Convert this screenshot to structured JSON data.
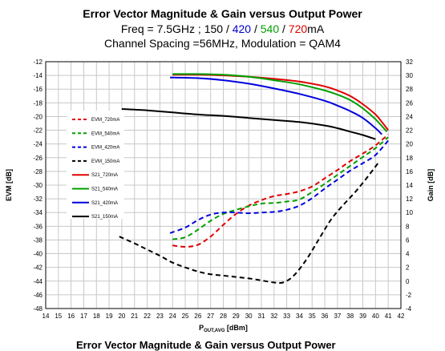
{
  "title": "Error Vector Magnitude & Gain versus Output Power",
  "subtitle": {
    "prefix": "Freq = 7.5GHz ; ",
    "parts": [
      {
        "text": "150",
        "color": "#000000"
      },
      {
        "text": " / ",
        "color": "#000000"
      },
      {
        "text": "420",
        "color": "#0000cc"
      },
      {
        "text": " / ",
        "color": "#000000"
      },
      {
        "text": "540",
        "color": "#00a000"
      },
      {
        "text": " / ",
        "color": "#000000"
      },
      {
        "text": "720",
        "color": "#e00000"
      }
    ],
    "suffix": "mA"
  },
  "subtitle2": "Channel Spacing =56MHz, Modulation = QAM4",
  "cut_caption": "Error Vector Magnitude & Gain versus Output Power",
  "chart_data": {
    "type": "line",
    "xlabel_main": "P",
    "xlabel_sub": "OUT,AVG",
    "xlabel_rest": " [dBm]",
    "ylabel": "EVM [dB]",
    "y2label": "Gain [dB]",
    "xlim": [
      14,
      42
    ],
    "ylim": [
      -48,
      -12
    ],
    "y2lim": [
      -4,
      32
    ],
    "xticks": [
      14,
      15,
      16,
      17,
      18,
      19,
      20,
      21,
      22,
      23,
      24,
      25,
      26,
      27,
      28,
      29,
      30,
      31,
      32,
      33,
      34,
      35,
      36,
      37,
      38,
      39,
      40,
      41,
      42
    ],
    "yticks": [
      -12,
      -14,
      -16,
      -18,
      -20,
      -22,
      -24,
      -26,
      -28,
      -30,
      -32,
      -34,
      -36,
      -38,
      -40,
      -42,
      -44,
      -46,
      -48
    ],
    "y2ticks": [
      32,
      30,
      28,
      26,
      24,
      22,
      20,
      18,
      16,
      14,
      12,
      10,
      8,
      6,
      4,
      2,
      0,
      -2,
      -4
    ],
    "grid": true,
    "legend_position": "upper-left",
    "series": [
      {
        "name": "EVM_720mA",
        "axis": "left",
        "color": "#e00000",
        "dash": true,
        "x": [
          24,
          25,
          26,
          27,
          28,
          29,
          30,
          31,
          32,
          33,
          34,
          35,
          36,
          37,
          38,
          39,
          40,
          41
        ],
        "y": [
          -38.8,
          -39.0,
          -38.7,
          -37.5,
          -35.8,
          -34.2,
          -33.0,
          -32.2,
          -31.6,
          -31.3,
          -30.9,
          -30.2,
          -29.0,
          -27.8,
          -26.5,
          -25.4,
          -24.2,
          -22.6
        ]
      },
      {
        "name": "EVM_540mA",
        "axis": "left",
        "color": "#00a000",
        "dash": true,
        "x": [
          24,
          25,
          26,
          27,
          28,
          29,
          30,
          31,
          32,
          33,
          34,
          35,
          36,
          37,
          38,
          39,
          40,
          41
        ],
        "y": [
          -37.9,
          -37.6,
          -36.5,
          -35.2,
          -34.2,
          -33.6,
          -33.1,
          -32.7,
          -32.6,
          -32.4,
          -32.1,
          -31.0,
          -29.8,
          -28.5,
          -27.2,
          -25.9,
          -24.6,
          -23.0
        ]
      },
      {
        "name": "EVM_420mA",
        "axis": "left",
        "color": "#0000dd",
        "dash": true,
        "x": [
          23.8,
          25,
          26,
          27,
          28,
          29,
          30,
          31,
          32,
          33,
          34,
          35,
          36,
          37,
          38,
          39,
          40,
          41
        ],
        "y": [
          -37.0,
          -36.2,
          -35.1,
          -34.3,
          -34.0,
          -34.0,
          -34.1,
          -34.0,
          -33.9,
          -33.6,
          -33.0,
          -31.9,
          -30.5,
          -29.2,
          -27.9,
          -26.8,
          -25.6,
          -23.5
        ]
      },
      {
        "name": "EVM_150mA",
        "axis": "left",
        "color": "#000000",
        "dash": true,
        "x": [
          19.8,
          21,
          22,
          23,
          24,
          25,
          26,
          27,
          28,
          29,
          30,
          31,
          32,
          32.7,
          33.5,
          34.5,
          35.5,
          36.5,
          37.5,
          38.5,
          39.5,
          40.2
        ],
        "y": [
          -37.5,
          -38.5,
          -39.4,
          -40.3,
          -41.3,
          -42.0,
          -42.6,
          -43.0,
          -43.2,
          -43.4,
          -43.6,
          -43.9,
          -44.2,
          -44.2,
          -43.3,
          -41.0,
          -38.0,
          -35.0,
          -32.8,
          -30.8,
          -28.5,
          -26.8
        ]
      },
      {
        "name": "S21_720mA",
        "axis": "right",
        "color": "#e00000",
        "dash": false,
        "x": [
          24,
          26,
          28,
          30,
          32,
          34,
          36,
          37,
          38,
          39,
          40,
          40.5,
          41
        ],
        "y": [
          30.1,
          30.1,
          30.0,
          29.8,
          29.5,
          29.1,
          28.4,
          27.8,
          27.0,
          25.8,
          24.3,
          23.2,
          22.0
        ]
      },
      {
        "name": "S21_540mA",
        "axis": "right",
        "color": "#00a000",
        "dash": false,
        "x": [
          24,
          26,
          28,
          30,
          32,
          34,
          36,
          37,
          38,
          39,
          40,
          40.5,
          40.9
        ],
        "y": [
          30.2,
          30.2,
          30.1,
          29.8,
          29.3,
          28.7,
          27.8,
          27.2,
          26.4,
          25.2,
          23.6,
          22.6,
          21.8
        ]
      },
      {
        "name": "S21_420mA",
        "axis": "right",
        "color": "#0000dd",
        "dash": false,
        "x": [
          23.8,
          26,
          28,
          30,
          32,
          34,
          36,
          37,
          38,
          39,
          40,
          40.5
        ],
        "y": [
          29.7,
          29.6,
          29.3,
          28.8,
          28.1,
          27.3,
          26.3,
          25.6,
          24.8,
          23.8,
          22.3,
          21.4
        ]
      },
      {
        "name": "S21_150mA",
        "axis": "right",
        "color": "#000000",
        "dash": false,
        "x": [
          20,
          22,
          24,
          26,
          28,
          30,
          32,
          34,
          36,
          37,
          38,
          39,
          40
        ],
        "y": [
          25.1,
          24.9,
          24.6,
          24.3,
          24.1,
          23.8,
          23.5,
          23.2,
          22.7,
          22.3,
          21.8,
          21.3,
          20.7
        ]
      }
    ]
  }
}
